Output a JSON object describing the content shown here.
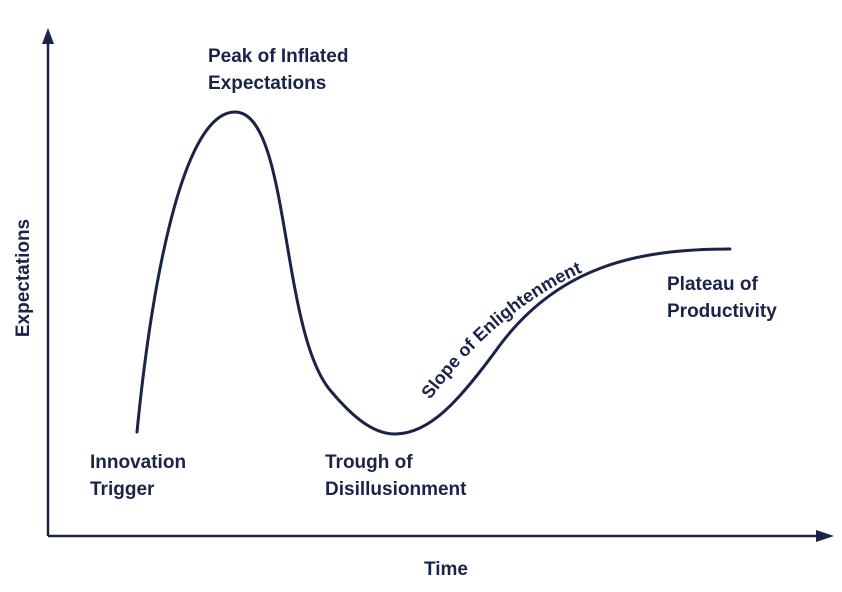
{
  "diagram": {
    "y_axis_label": "Expectations",
    "x_axis_label": "Time",
    "phases": {
      "innovation_trigger": [
        "Innovation",
        "Trigger"
      ],
      "peak": [
        "Peak of Inflated",
        "Expectations"
      ],
      "trough": [
        "Trough of",
        "Disillusionment"
      ],
      "slope": "Slope of Enlightenment",
      "plateau": [
        "Plateau of",
        "Productivity"
      ]
    },
    "colors": {
      "ink": "#1a2348",
      "background": "#ffffff"
    }
  }
}
